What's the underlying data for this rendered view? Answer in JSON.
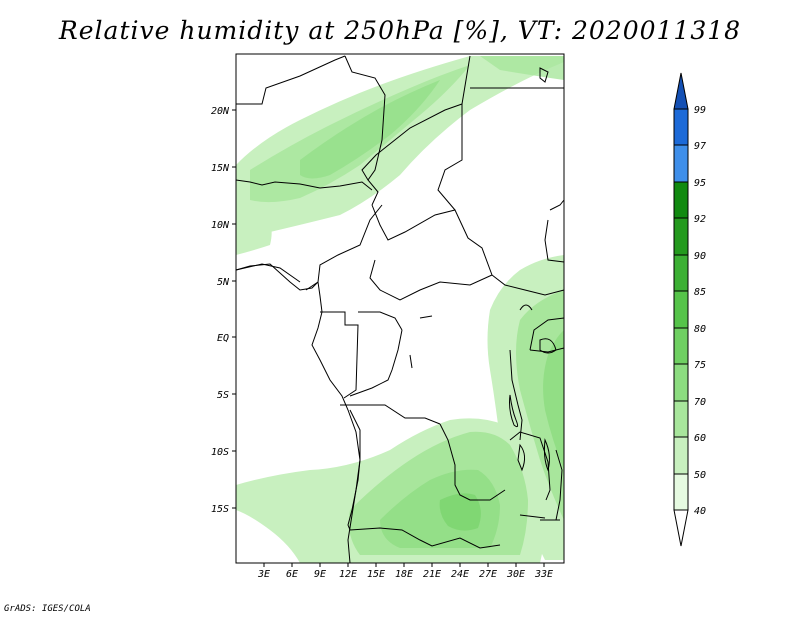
{
  "title": "Relative humidity at 250hPa [%], VT: 2020011318",
  "credit": "GrADS: IGES/COLA",
  "map": {
    "latitude_ticks": [
      "20N",
      "15N",
      "10N",
      "5N",
      "EQ",
      "5S",
      "10S",
      "15S"
    ],
    "longitude_ticks": [
      "3E",
      "6E",
      "9E",
      "12E",
      "15E",
      "18E",
      "21E",
      "24E",
      "27E",
      "30E",
      "33E"
    ]
  },
  "colorbar": {
    "levels": [
      "40",
      "50",
      "60",
      "70",
      "75",
      "80",
      "85",
      "90",
      "92",
      "95",
      "97",
      "99"
    ],
    "colors": [
      "#ffffff",
      "#e6fae1",
      "#c8f0bf",
      "#a8e69c",
      "#8cdc80",
      "#6fd062",
      "#56c44a",
      "#3cb034",
      "#249a1e",
      "#118a10",
      "#3f8fea",
      "#1c6ad8",
      "#1450b4"
    ]
  }
}
